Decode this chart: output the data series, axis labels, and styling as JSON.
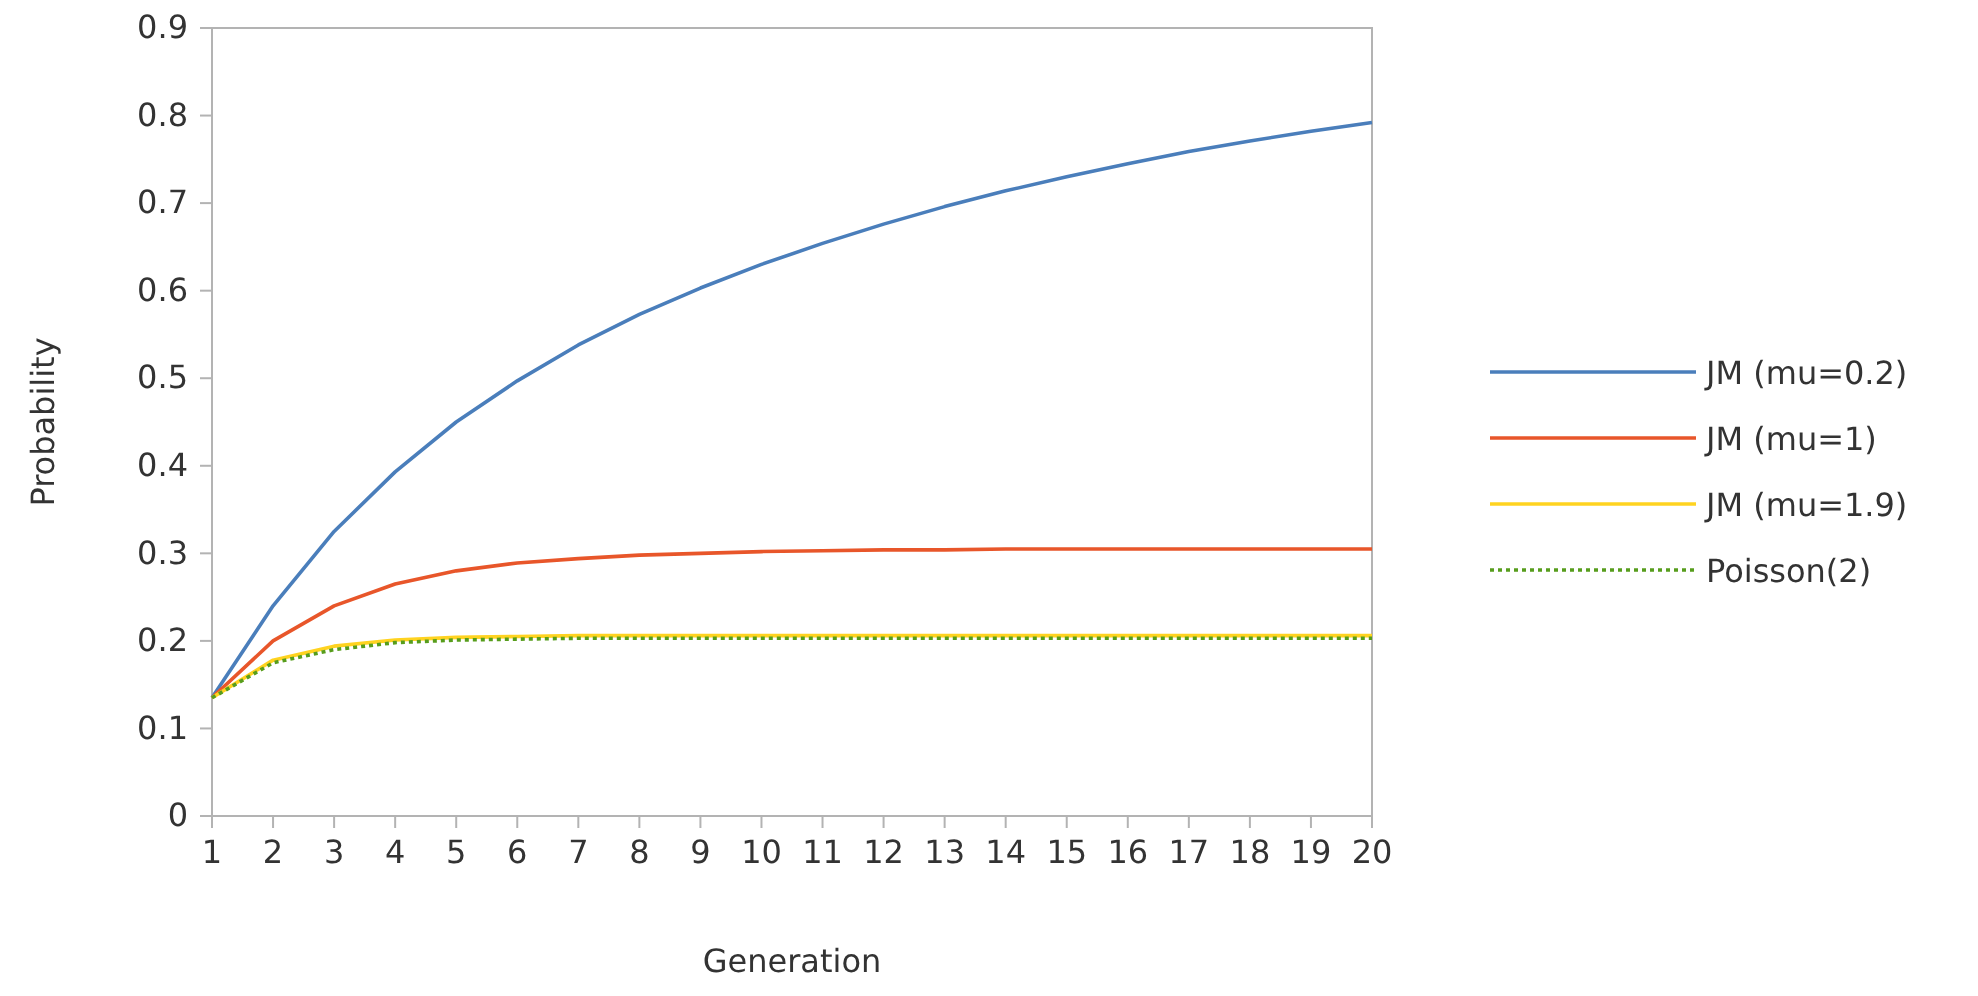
{
  "chart_data": {
    "type": "line",
    "xlabel": "Generation",
    "ylabel": "Probability",
    "x": [
      1,
      2,
      3,
      4,
      5,
      6,
      7,
      8,
      9,
      10,
      11,
      12,
      13,
      14,
      15,
      16,
      17,
      18,
      19,
      20
    ],
    "xlim": [
      1,
      20
    ],
    "xticks": [
      1,
      2,
      3,
      4,
      5,
      6,
      7,
      8,
      9,
      10,
      11,
      12,
      13,
      14,
      15,
      16,
      17,
      18,
      19,
      20
    ],
    "ylim": [
      0,
      0.9
    ],
    "yticks": [
      0,
      0.1,
      0.2,
      0.3,
      0.4,
      0.5,
      0.6,
      0.7,
      0.8,
      0.9
    ],
    "grid": false,
    "legend": "right",
    "marker": "none",
    "series": [
      {
        "name": "JM (mu=0.2)",
        "color": "#4a7ebb",
        "line_style": "solid",
        "values": [
          0.135,
          0.24,
          0.325,
          0.393,
          0.45,
          0.497,
          0.538,
          0.573,
          0.603,
          0.63,
          0.654,
          0.676,
          0.696,
          0.714,
          0.73,
          0.745,
          0.759,
          0.771,
          0.782,
          0.792
        ]
      },
      {
        "name": "JM (mu=1)",
        "color": "#e8562a",
        "line_style": "solid",
        "values": [
          0.135,
          0.2,
          0.24,
          0.265,
          0.28,
          0.289,
          0.294,
          0.298,
          0.3,
          0.302,
          0.303,
          0.304,
          0.304,
          0.305,
          0.305,
          0.305,
          0.305,
          0.305,
          0.305,
          0.305
        ]
      },
      {
        "name": "JM (mu=1.9)",
        "color": "#ffd320",
        "line_style": "solid",
        "values": [
          0.135,
          0.178,
          0.194,
          0.201,
          0.204,
          0.205,
          0.206,
          0.206,
          0.206,
          0.206,
          0.206,
          0.206,
          0.206,
          0.206,
          0.206,
          0.206,
          0.206,
          0.206,
          0.206,
          0.206
        ]
      },
      {
        "name": "Poisson(2)",
        "color": "#579d1c",
        "line_style": "dotted",
        "values": [
          0.135,
          0.175,
          0.19,
          0.198,
          0.201,
          0.202,
          0.203,
          0.203,
          0.203,
          0.203,
          0.203,
          0.203,
          0.203,
          0.203,
          0.203,
          0.203,
          0.203,
          0.203,
          0.203,
          0.203
        ]
      }
    ]
  }
}
